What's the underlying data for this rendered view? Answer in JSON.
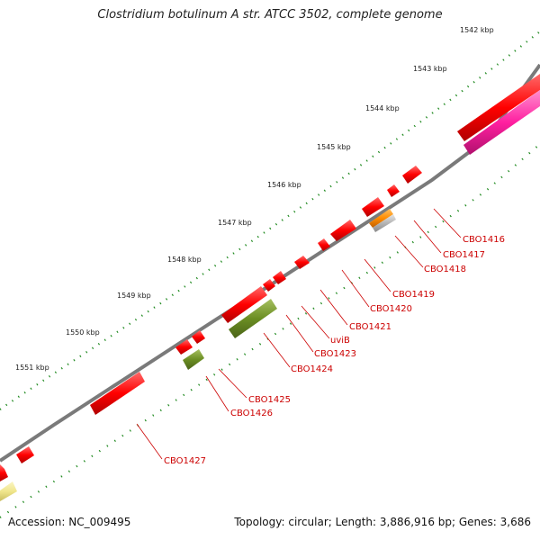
{
  "title": "Clostridium botulinum A str. ATCC 3502, complete genome",
  "footer": {
    "accession": "Accession: NC_009495",
    "summary": "Topology: circular; Length: 3,886,916 bp; Genes: 3,686"
  },
  "scale_labels": [
    "1542 kbp",
    "1543 kbp",
    "1544 kbp",
    "1545 kbp",
    "1546 kbp",
    "1547 kbp",
    "1548 kbp",
    "1549 kbp",
    "1550 kbp",
    "1551 kbp"
  ],
  "gene_labels": [
    "CBO1416",
    "CBO1417",
    "CBO1418",
    "CBO1419",
    "CBO1420",
    "CBO1421",
    "uviB",
    "CBO1423",
    "CBO1424",
    "CBO1425",
    "CBO1426",
    "CBO1427"
  ],
  "colors": {
    "backbone": "#7a7a7a",
    "cds_red": "#ff0000",
    "cds_pink": "#ff1fa0",
    "cds_green": "#6b8e23",
    "cds_orange": "#ff8c00",
    "cds_grey": "#b4b4b4",
    "cds_yellow": "#f0e68c",
    "ticks": "#228b22",
    "label": "#cc0000"
  }
}
